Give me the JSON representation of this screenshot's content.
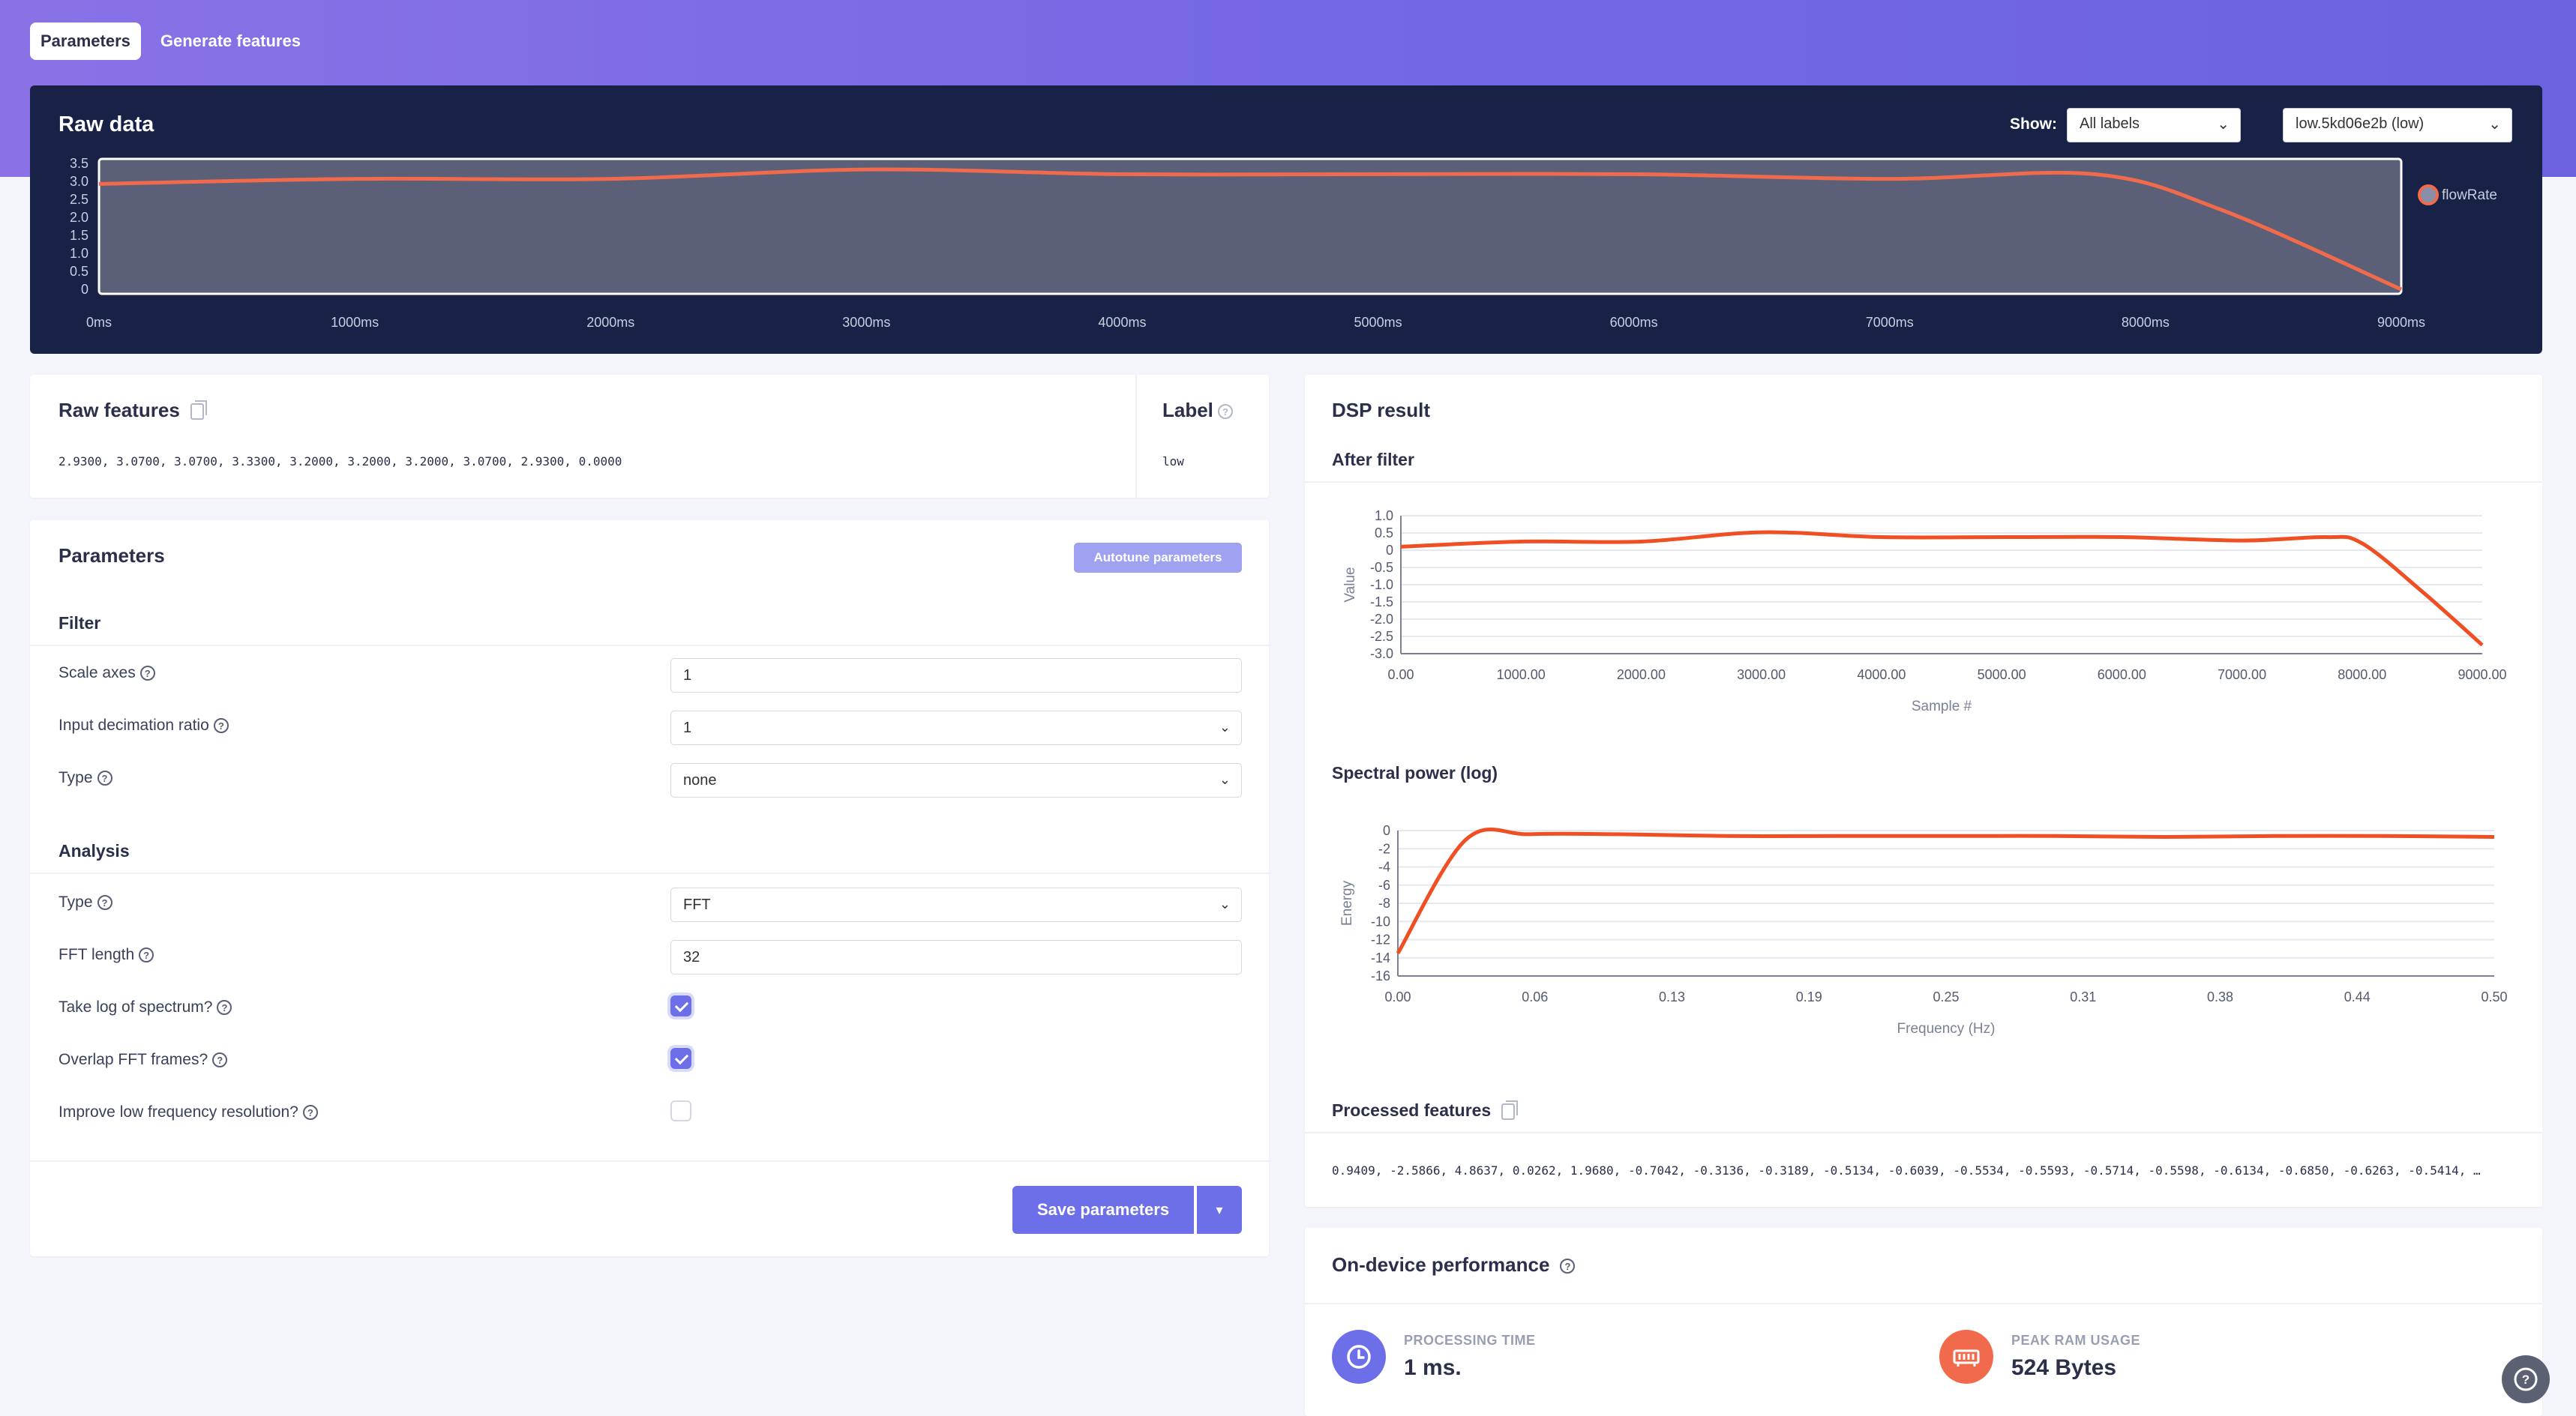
{
  "tabs": [
    {
      "label": "Parameters",
      "active": true
    },
    {
      "label": "Generate features",
      "active": false
    }
  ],
  "raw_data": {
    "title": "Raw data",
    "show_label": "Show:",
    "labels_select": "All labels",
    "sample_select": "low.5kd06e2b (low)",
    "chart_data": {
      "type": "line",
      "x_unit": "ms",
      "x_ticks": [
        "0ms",
        "1000ms",
        "2000ms",
        "3000ms",
        "4000ms",
        "5000ms",
        "6000ms",
        "7000ms",
        "8000ms",
        "9000ms"
      ],
      "y_ticks": [
        "3.5",
        "3.0",
        "2.5",
        "2.0",
        "1.5",
        "1.0",
        "0.5",
        "0"
      ],
      "ylim": [
        0,
        3.5
      ],
      "xlim": [
        0,
        9000
      ],
      "series": [
        {
          "name": "flowRate",
          "color": "#f06a4b",
          "x": [
            0,
            1000,
            2000,
            3000,
            4000,
            5000,
            6000,
            7000,
            7800,
            8300,
            9000
          ],
          "y": [
            2.93,
            3.07,
            3.07,
            3.33,
            3.2,
            3.2,
            3.2,
            3.07,
            3.2,
            2.2,
            0.0
          ]
        }
      ]
    }
  },
  "raw_features": {
    "title": "Raw features",
    "values": "2.9300, 3.0700, 3.0700, 3.3300, 3.2000, 3.2000, 3.2000, 3.0700, 2.9300, 0.0000"
  },
  "label_card": {
    "title": "Label",
    "value": "low"
  },
  "parameters": {
    "title": "Parameters",
    "autotune_label": "Autotune parameters",
    "filter": {
      "title": "Filter",
      "scale_axes_label": "Scale axes",
      "scale_axes_value": "1",
      "decimation_label": "Input decimation ratio",
      "decimation_value": "1",
      "type_label": "Type",
      "type_value": "none"
    },
    "analysis": {
      "title": "Analysis",
      "type_label": "Type",
      "type_value": "FFT",
      "fft_length_label": "FFT length",
      "fft_length_value": "32",
      "log_spectrum_label": "Take log of spectrum?",
      "log_spectrum_checked": true,
      "overlap_label": "Overlap FFT frames?",
      "overlap_checked": true,
      "low_freq_label": "Improve low frequency resolution?",
      "low_freq_checked": false
    },
    "save_label": "Save parameters"
  },
  "dsp_result": {
    "title": "DSP result",
    "after_filter": {
      "title": "After filter",
      "chart_data": {
        "type": "line",
        "xlabel": "Sample #",
        "ylabel": "Value",
        "x_ticks": [
          "0.00",
          "1000.00",
          "2000.00",
          "3000.00",
          "4000.00",
          "5000.00",
          "6000.00",
          "7000.00",
          "8000.00",
          "9000.00"
        ],
        "y_ticks": [
          "1.0",
          "0.5",
          "0",
          "-0.5",
          "-1.0",
          "-1.5",
          "-2.0",
          "-2.5",
          "-3.0"
        ],
        "xlim": [
          0,
          9000
        ],
        "ylim": [
          -3.0,
          1.0
        ],
        "series": [
          {
            "color": "#f04e23",
            "x": [
              0,
              1000,
              2000,
              3000,
              4000,
              5000,
              6000,
              7000,
              7700,
              8000,
              8500,
              9000
            ],
            "y": [
              0.1,
              0.25,
              0.25,
              0.52,
              0.38,
              0.38,
              0.38,
              0.28,
              0.38,
              0.2,
              -1.2,
              -2.75
            ]
          }
        ]
      }
    },
    "spectral": {
      "title": "Spectral power (log)",
      "chart_data": {
        "type": "line",
        "xlabel": "Frequency (Hz)",
        "ylabel": "Energy",
        "x_ticks": [
          "0.00",
          "0.06",
          "0.13",
          "0.19",
          "0.25",
          "0.31",
          "0.38",
          "0.44",
          "0.50"
        ],
        "y_ticks": [
          "0",
          "-2",
          "-4",
          "-6",
          "-8",
          "-10",
          "-12",
          "-14",
          "-16"
        ],
        "xlim": [
          0,
          0.5
        ],
        "ylim": [
          -16,
          0
        ],
        "series": [
          {
            "color": "#f04e23",
            "x": [
              0.0,
              0.031,
              0.06,
              0.1,
              0.15,
              0.2,
              0.25,
              0.3,
              0.35,
              0.4,
              0.45,
              0.5
            ],
            "y": [
              -13.5,
              -1.0,
              -0.4,
              -0.4,
              -0.6,
              -0.6,
              -0.6,
              -0.6,
              -0.7,
              -0.6,
              -0.6,
              -0.7
            ]
          }
        ]
      }
    },
    "processed_title": "Processed features",
    "processed_values": "0.9409, -2.5866, 4.8637, 0.0262, 1.9680, -0.7042, -0.3136, -0.3189, -0.5134, -0.6039, -0.5534, -0.5593, -0.5714, -0.5598, -0.6134, -0.6850, -0.6263, -0.5414, …"
  },
  "performance": {
    "title": "On-device performance",
    "processing_label": "PROCESSING TIME",
    "processing_value": "1 ms.",
    "ram_label": "PEAK RAM USAGE",
    "ram_value": "524 Bytes"
  }
}
